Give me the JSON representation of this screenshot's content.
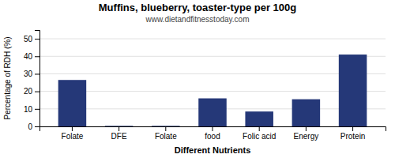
{
  "chart_data": {
    "type": "bar",
    "title": "Muffins, blueberry, toaster-type per 100g",
    "subtitle": "www.dietandfitnesstoday.com",
    "xlabel": "Different Nutrients",
    "ylabel": "Percentage of RDH (%)",
    "categories": [
      "Folate",
      "DFE",
      "Folate",
      "food",
      "Folic acid",
      "Energy",
      "Protein"
    ],
    "values": [
      26.5,
      0.3,
      0.3,
      16.0,
      8.5,
      15.5,
      41.0
    ],
    "color": "#253878",
    "ylim": [
      0,
      55
    ],
    "yticks": [
      0,
      10,
      20,
      30,
      40,
      50
    ],
    "grid": true
  }
}
